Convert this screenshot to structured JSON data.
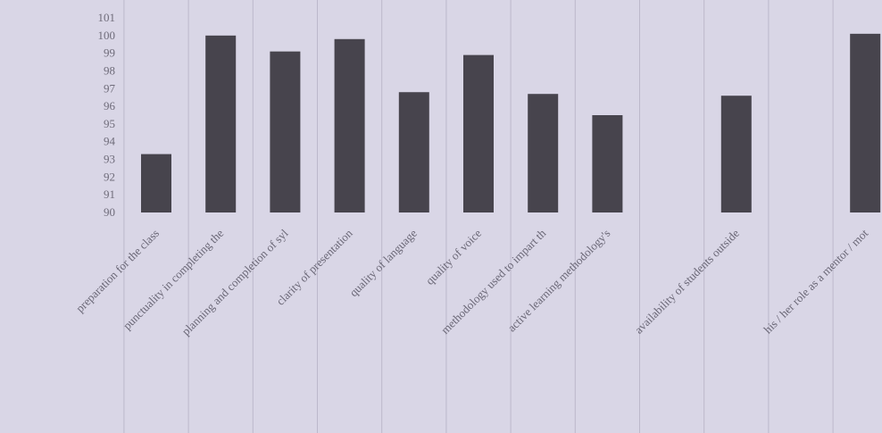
{
  "chart_data": {
    "type": "bar",
    "title": "",
    "xlabel": "",
    "ylabel": "",
    "ylim": [
      90,
      101
    ],
    "yticks": [
      90,
      91,
      92,
      93,
      94,
      95,
      96,
      97,
      98,
      99,
      100,
      101
    ],
    "grid": true,
    "legend": "none",
    "bar_color": "#47444d",
    "categories": [
      "preparation for the class",
      "punctuality in completing the",
      "planning and completion of syl",
      "clarity of presentation",
      "quality of language",
      "quality of voice",
      "methodology used to impart th",
      "active learning methodology's",
      "",
      "availability of students outside",
      "",
      "his / her role as a mentor / mot"
    ],
    "values": [
      93.3,
      100,
      99.1,
      99.8,
      96.8,
      98.9,
      96.7,
      95.5,
      null,
      96.6,
      null,
      100.1
    ]
  }
}
